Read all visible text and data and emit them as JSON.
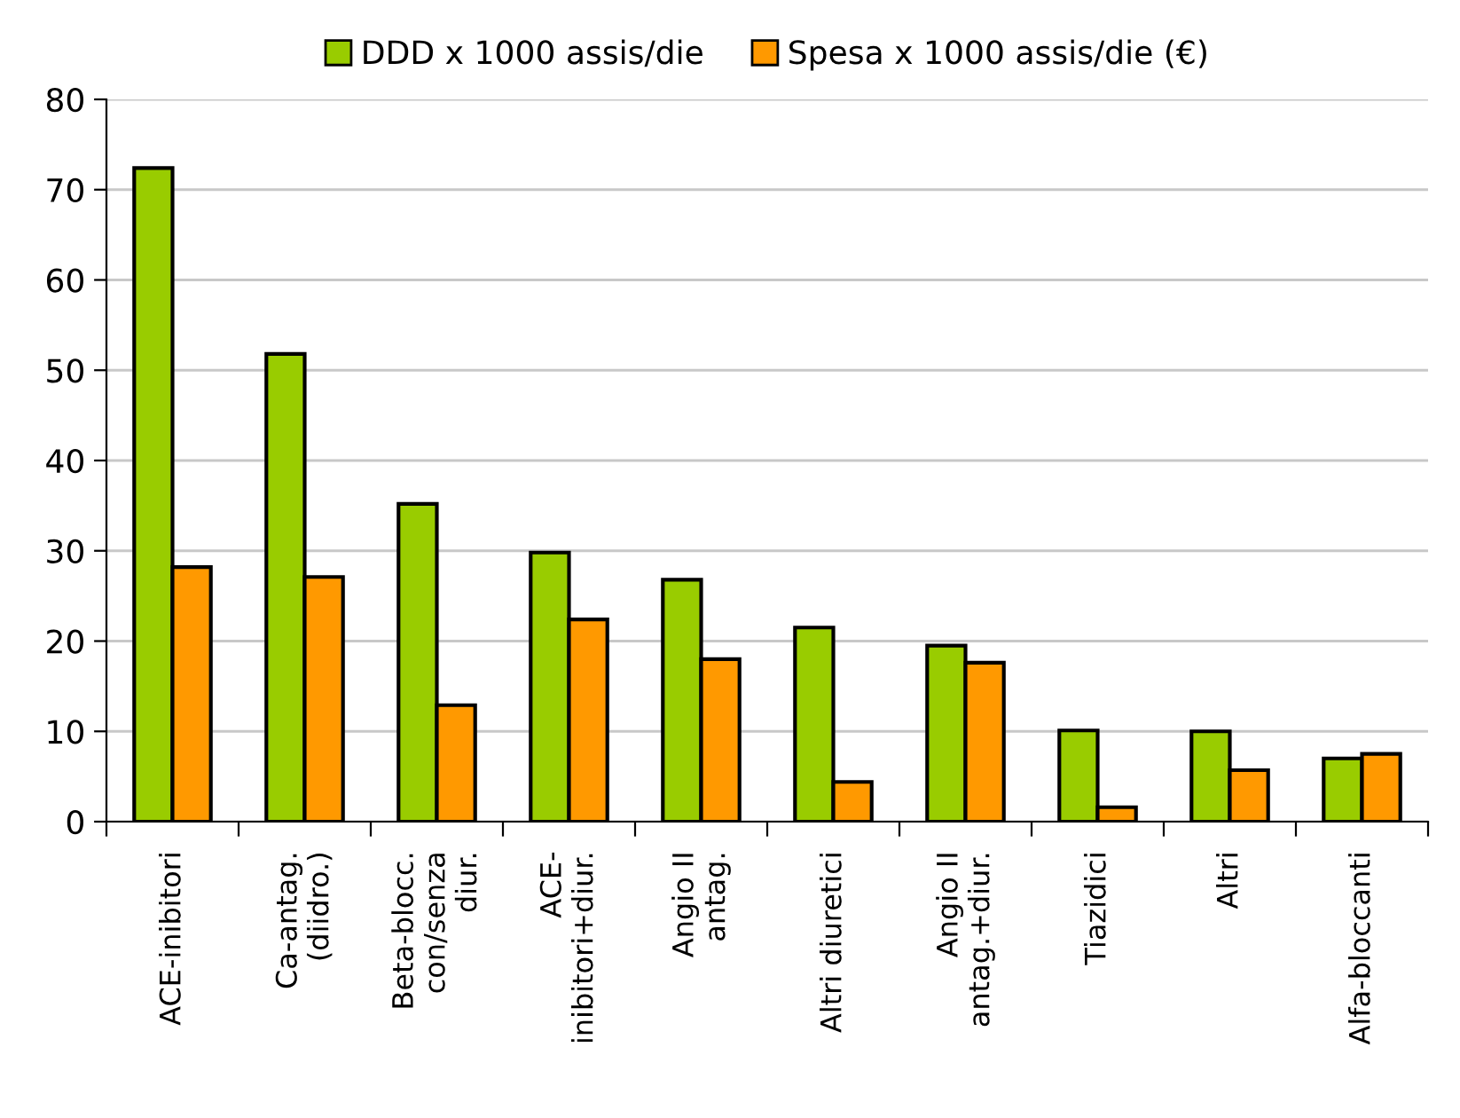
{
  "chart_data": {
    "type": "bar",
    "categories": [
      "ACE-inibitori",
      "Ca-antag.\n(diidro.)",
      "Beta-blocc.\ncon/senza\ndiur.",
      "ACE-\ninibitori+diur.",
      "Angio II\nantag.",
      "Altri diuretici",
      "Angio II\nantag.+diur.",
      "Tiazidici",
      "Altri",
      "Alfa-bloccanti"
    ],
    "series": [
      {
        "name": "DDD x 1000 assis/die",
        "color": "#99cc00",
        "values": [
          72.4,
          51.8,
          35.2,
          29.8,
          26.8,
          21.5,
          19.5,
          10.1,
          10.0,
          7.0
        ]
      },
      {
        "name": "Spesa x 1000 assis/die (€)",
        "color": "#ff9900",
        "values": [
          28.2,
          27.1,
          12.9,
          22.4,
          18.0,
          4.4,
          17.6,
          1.6,
          5.7,
          7.5
        ]
      }
    ],
    "ylim": [
      0,
      80
    ],
    "yticks": [
      0,
      10,
      20,
      30,
      40,
      50,
      60,
      70,
      80
    ],
    "grid": "y",
    "legend": "top"
  }
}
